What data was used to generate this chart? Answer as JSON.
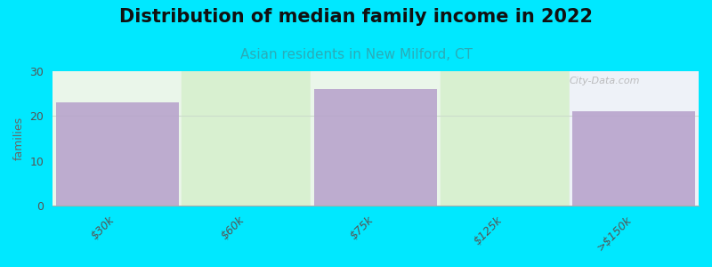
{
  "title": "Distribution of median family income in 2022",
  "subtitle": "Asian residents in New Milford, CT",
  "categories": [
    "$30k",
    "$60k",
    "$75k",
    "$125k",
    ">$150k"
  ],
  "values": [
    23,
    0,
    26,
    0,
    21
  ],
  "bar_positions": [
    0,
    2,
    4
  ],
  "bar_values": [
    23,
    26,
    21
  ],
  "bar_color": "#b8a4cc",
  "col_bg_colors": [
    "#f0fae8",
    "#e8f5e0",
    "#f0fae8",
    "#e8f5e0",
    "#f5f8ff"
  ],
  "background_color": "#00e8ff",
  "plot_bg_top": "#e8f5f8",
  "plot_bg_bottom": "#f5fefa",
  "ylabel": "families",
  "ylim": [
    0,
    30
  ],
  "yticks": [
    0,
    10,
    20,
    30
  ],
  "title_fontsize": 15,
  "subtitle_fontsize": 11,
  "tick_fontsize": 9,
  "watermark": "City-Data.com"
}
